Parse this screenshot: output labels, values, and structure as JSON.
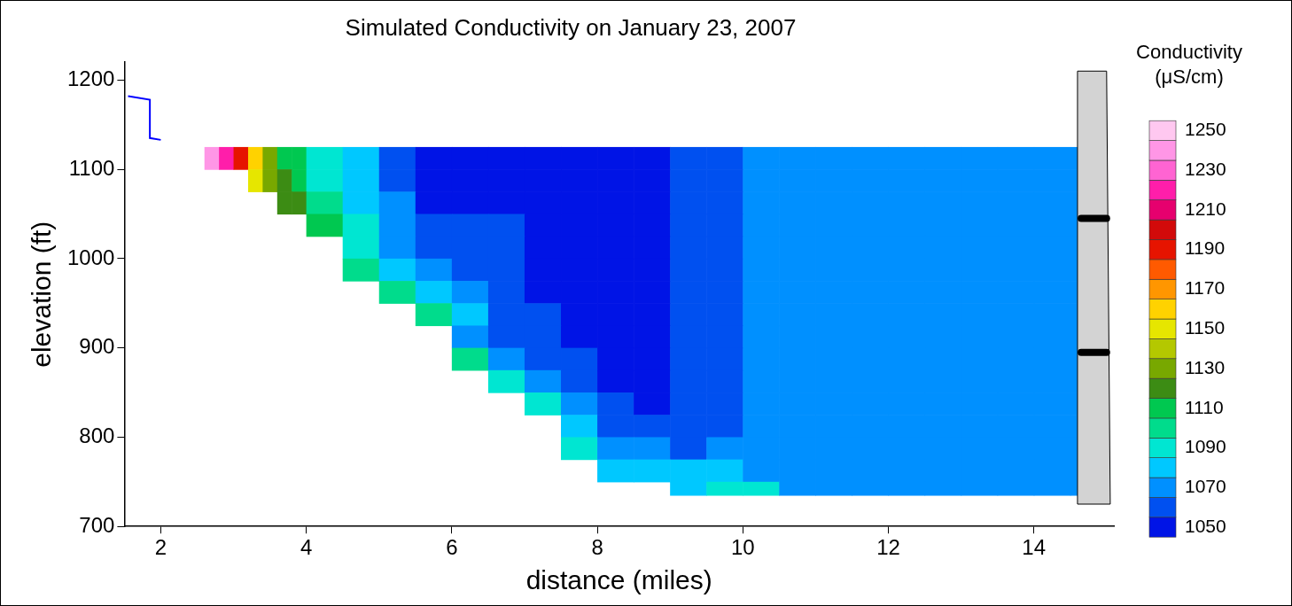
{
  "chart_data": {
    "type": "contour",
    "title": "Simulated Conductivity on January 23, 2007",
    "x_label": "distance (miles)",
    "y_label": "elevation (ft)",
    "xlim": [
      1.5,
      15.1
    ],
    "xticks": [
      2,
      4,
      6,
      8,
      10,
      12,
      14
    ],
    "ylim": [
      700,
      1220
    ],
    "yticks": [
      700,
      800,
      900,
      1000,
      1100,
      1200
    ],
    "grid": false,
    "x_edges": [
      2.6,
      2.8,
      3.0,
      3.2,
      3.4,
      3.6,
      3.8,
      4.0,
      4.5,
      5.0,
      5.5,
      6.0,
      6.5,
      7.0,
      7.5,
      8.0,
      8.5,
      9.0,
      9.5,
      10.0,
      10.5,
      11.0,
      11.5,
      12.0,
      12.5,
      13.0,
      13.5,
      14.0,
      14.5,
      14.6
    ],
    "y_edges": [
      1125,
      1100,
      1075,
      1050,
      1025,
      1000,
      975,
      950,
      925,
      900,
      875,
      850,
      825,
      800,
      775,
      750,
      735
    ],
    "cells": [
      [
        1240,
        1220,
        1190,
        1160,
        1130,
        1110,
        1110,
        1090,
        1080,
        1060,
        1050,
        1050,
        1050,
        1050,
        1050,
        1050,
        1050,
        1060,
        1060,
        1070,
        1070,
        1070,
        1070,
        1070,
        1070,
        1070,
        1070,
        1070,
        1070
      ],
      [
        null,
        null,
        null,
        1150,
        1130,
        1120,
        1110,
        1090,
        1080,
        1060,
        1050,
        1050,
        1050,
        1050,
        1050,
        1050,
        1050,
        1060,
        1060,
        1070,
        1070,
        1070,
        1070,
        1070,
        1070,
        1070,
        1070,
        1070,
        1070
      ],
      [
        null,
        null,
        null,
        null,
        null,
        1120,
        1120,
        1100,
        1080,
        1070,
        1050,
        1050,
        1050,
        1050,
        1050,
        1050,
        1050,
        1060,
        1060,
        1070,
        1070,
        1070,
        1070,
        1070,
        1070,
        1070,
        1070,
        1070,
        1070
      ],
      [
        null,
        null,
        null,
        null,
        null,
        null,
        null,
        1110,
        1090,
        1070,
        1060,
        1060,
        1060,
        1050,
        1050,
        1050,
        1050,
        1060,
        1060,
        1070,
        1070,
        1070,
        1070,
        1070,
        1070,
        1070,
        1070,
        1070,
        1070
      ],
      [
        null,
        null,
        null,
        null,
        null,
        null,
        null,
        null,
        1090,
        1070,
        1060,
        1060,
        1060,
        1050,
        1050,
        1050,
        1050,
        1060,
        1060,
        1070,
        1070,
        1070,
        1070,
        1070,
        1070,
        1070,
        1070,
        1070,
        1070
      ],
      [
        null,
        null,
        null,
        null,
        null,
        null,
        null,
        null,
        1100,
        1080,
        1070,
        1060,
        1060,
        1050,
        1050,
        1050,
        1050,
        1060,
        1060,
        1070,
        1070,
        1070,
        1070,
        1070,
        1070,
        1070,
        1070,
        1070,
        1070
      ],
      [
        null,
        null,
        null,
        null,
        null,
        null,
        null,
        null,
        null,
        1100,
        1080,
        1070,
        1060,
        1050,
        1050,
        1050,
        1050,
        1060,
        1060,
        1070,
        1070,
        1070,
        1070,
        1070,
        1070,
        1070,
        1070,
        1070,
        1070
      ],
      [
        null,
        null,
        null,
        null,
        null,
        null,
        null,
        null,
        null,
        null,
        1100,
        1080,
        1060,
        1060,
        1050,
        1050,
        1050,
        1060,
        1060,
        1070,
        1070,
        1070,
        1070,
        1070,
        1070,
        1070,
        1070,
        1070,
        1070
      ],
      [
        null,
        null,
        null,
        null,
        null,
        null,
        null,
        null,
        null,
        null,
        null,
        1070,
        1060,
        1060,
        1050,
        1050,
        1050,
        1060,
        1060,
        1070,
        1070,
        1070,
        1070,
        1070,
        1070,
        1070,
        1070,
        1070,
        1070
      ],
      [
        null,
        null,
        null,
        null,
        null,
        null,
        null,
        null,
        null,
        null,
        null,
        1100,
        1070,
        1060,
        1060,
        1050,
        1050,
        1060,
        1060,
        1070,
        1070,
        1070,
        1070,
        1070,
        1070,
        1070,
        1070,
        1070,
        1070
      ],
      [
        null,
        null,
        null,
        null,
        null,
        null,
        null,
        null,
        null,
        null,
        null,
        null,
        1090,
        1070,
        1060,
        1050,
        1050,
        1060,
        1060,
        1070,
        1070,
        1070,
        1070,
        1070,
        1070,
        1070,
        1070,
        1070,
        1070
      ],
      [
        null,
        null,
        null,
        null,
        null,
        null,
        null,
        null,
        null,
        null,
        null,
        null,
        null,
        1090,
        1070,
        1060,
        1050,
        1060,
        1060,
        1070,
        1070,
        1070,
        1070,
        1070,
        1070,
        1070,
        1070,
        1070,
        1070
      ],
      [
        null,
        null,
        null,
        null,
        null,
        null,
        null,
        null,
        null,
        null,
        null,
        null,
        null,
        null,
        1080,
        1060,
        1060,
        1060,
        1060,
        1070,
        1070,
        1070,
        1070,
        1070,
        1070,
        1070,
        1070,
        1070,
        1070
      ],
      [
        null,
        null,
        null,
        null,
        null,
        null,
        null,
        null,
        null,
        null,
        null,
        null,
        null,
        null,
        1090,
        1070,
        1070,
        1060,
        1070,
        1070,
        1070,
        1070,
        1070,
        1070,
        1070,
        1070,
        1070,
        1070,
        1070
      ],
      [
        null,
        null,
        null,
        null,
        null,
        null,
        null,
        null,
        null,
        null,
        null,
        null,
        null,
        null,
        null,
        1080,
        1080,
        1080,
        1080,
        1070,
        1070,
        1070,
        1070,
        1070,
        1070,
        1070,
        1070,
        1070,
        1070
      ],
      [
        null,
        null,
        null,
        null,
        null,
        null,
        null,
        null,
        null,
        null,
        null,
        null,
        null,
        null,
        null,
        null,
        null,
        1080,
        1090,
        1090,
        1070,
        1070,
        1070,
        1070,
        1070,
        1070,
        1070,
        1070,
        1070
      ]
    ],
    "colorbar": {
      "title": [
        "Conductivity",
        "(μS/cm)"
      ],
      "levels": [
        1050,
        1060,
        1070,
        1080,
        1090,
        1100,
        1110,
        1120,
        1130,
        1140,
        1150,
        1160,
        1170,
        1180,
        1190,
        1200,
        1210,
        1220,
        1230,
        1240,
        1250
      ],
      "colors": [
        "#0014e6",
        "#0050f0",
        "#0090ff",
        "#00c8ff",
        "#00e6d2",
        "#00dc8c",
        "#00c850",
        "#3c8c14",
        "#78a800",
        "#b4c800",
        "#e6e600",
        "#ffd200",
        "#ff9600",
        "#ff5a00",
        "#e61400",
        "#d20a0a",
        "#e6006e",
        "#ff1eaa",
        "#ff64d2",
        "#ff96e6",
        "#ffc8f0"
      ],
      "ticks": [
        1050,
        1070,
        1090,
        1110,
        1130,
        1150,
        1170,
        1190,
        1210,
        1230,
        1250
      ]
    },
    "dam": {
      "x": [
        14.6,
        15.0,
        15.05,
        14.6
      ],
      "y": [
        1210,
        1210,
        725,
        725
      ],
      "color": "#d3d3d3"
    },
    "outlets": {
      "x": [
        14.65,
        15.0
      ],
      "y": [
        1045,
        895
      ]
    },
    "inflow": {
      "x": [
        1.55,
        1.85,
        1.85,
        2.0
      ],
      "y": [
        1182,
        1178,
        1135,
        1133
      ],
      "color": "#0000ff"
    }
  }
}
